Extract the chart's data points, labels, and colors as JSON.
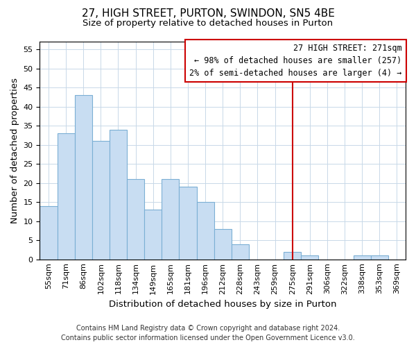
{
  "title": "27, HIGH STREET, PURTON, SWINDON, SN5 4BE",
  "subtitle": "Size of property relative to detached houses in Purton",
  "xlabel": "Distribution of detached houses by size in Purton",
  "ylabel": "Number of detached properties",
  "bin_labels": [
    "55sqm",
    "71sqm",
    "86sqm",
    "102sqm",
    "118sqm",
    "134sqm",
    "149sqm",
    "165sqm",
    "181sqm",
    "196sqm",
    "212sqm",
    "228sqm",
    "243sqm",
    "259sqm",
    "275sqm",
    "291sqm",
    "306sqm",
    "322sqm",
    "338sqm",
    "353sqm",
    "369sqm"
  ],
  "bar_heights": [
    14,
    33,
    43,
    31,
    34,
    21,
    13,
    21,
    19,
    15,
    8,
    4,
    0,
    0,
    2,
    1,
    0,
    0,
    1,
    1,
    0
  ],
  "bar_color": "#c8ddf2",
  "bar_edge_color": "#7bafd4",
  "vline_x": 14.5,
  "vline_color": "#cc0000",
  "annotation_box_title": "27 HIGH STREET: 271sqm",
  "annotation_box_line1": "← 98% of detached houses are smaller (257)",
  "annotation_box_line2": "2% of semi-detached houses are larger (4) →",
  "box_facecolor": "#ffffff",
  "box_edgecolor": "#cc0000",
  "ylim": [
    0,
    57
  ],
  "yticks": [
    0,
    5,
    10,
    15,
    20,
    25,
    30,
    35,
    40,
    45,
    50,
    55
  ],
  "footer_line1": "Contains HM Land Registry data © Crown copyright and database right 2024.",
  "footer_line2": "Contains public sector information licensed under the Open Government Licence v3.0.",
  "bg_color": "#ffffff",
  "grid_color": "#c8d8e8",
  "title_fontsize": 11,
  "subtitle_fontsize": 9.5,
  "axis_label_fontsize": 9.5,
  "tick_fontsize": 8,
  "annotation_fontsize": 8.5,
  "footer_fontsize": 7
}
